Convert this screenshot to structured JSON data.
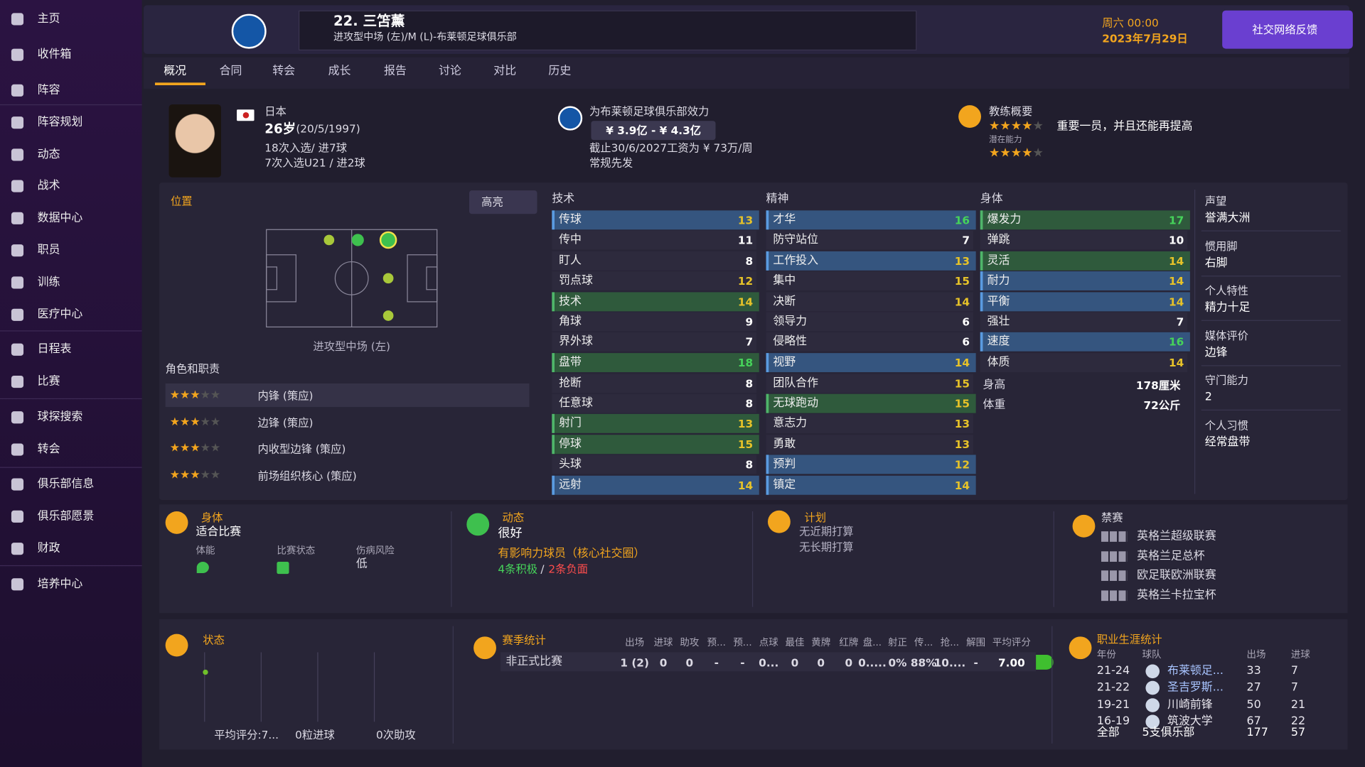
{
  "sidebar": {
    "items": [
      "主页",
      "收件箱",
      "阵容",
      "阵容规划",
      "动态",
      "战术",
      "数据中心",
      "职员",
      "训练",
      "医疗中心",
      "日程表",
      "比赛",
      "球探搜索",
      "转会",
      "俱乐部信息",
      "俱乐部愿景",
      "财政",
      "培养中心"
    ]
  },
  "header": {
    "name": "22. 三笘薰",
    "position": "进攻型中场 (左)/M (L)-布莱顿足球俱乐部",
    "time": "周六 00:00",
    "date": "2023年7月29日",
    "feedback_button": "社交网络反馈"
  },
  "tabs": [
    "概况",
    "合同",
    "转会",
    "成长",
    "报告",
    "讨论",
    "对比",
    "历史"
  ],
  "profile": {
    "nationality": "日本",
    "age": "26岁",
    "birth_date": "(20/5/1997)",
    "caps": "18次入选/ 进7球",
    "u21_caps": "7次入选U21 / 进2球",
    "club_line": "为布莱顿足球俱乐部效力",
    "value_range": "¥ 3.9亿 - ¥ 4.3亿",
    "contract": "截止30/6/2027工资为 ¥ 73万/周",
    "squad_status": "常规先发",
    "coach_title": "教练概要",
    "coach_summary": "重要一员，并且还能再提高",
    "potential_label": "潜在能力"
  },
  "position": {
    "title": "位置",
    "highlight_button": "高亮",
    "role_name": "进攻型中场 (左)",
    "roles_title": "角色和职责",
    "roles": [
      "内锋 (策应)",
      "边锋 (策应)",
      "内收型边锋 (策应)",
      "前场组织核心 (策应)"
    ]
  },
  "attributes": {
    "technical": {
      "title": "技术",
      "rows": [
        {
          "name": "传球",
          "value": 13,
          "highlight": "#35557f"
        },
        {
          "name": "传中",
          "value": 11
        },
        {
          "name": "盯人",
          "value": 8
        },
        {
          "name": "罚点球",
          "value": 12
        },
        {
          "name": "技术",
          "value": 14,
          "highlight": "#2f5a3c"
        },
        {
          "name": "角球",
          "value": 9
        },
        {
          "name": "界外球",
          "value": 7
        },
        {
          "name": "盘带",
          "value": 18,
          "highlight": "#2f5a3c"
        },
        {
          "name": "抢断",
          "value": 8
        },
        {
          "name": "任意球",
          "value": 8
        },
        {
          "name": "射门",
          "value": 13,
          "highlight": "#2f5a3c"
        },
        {
          "name": "停球",
          "value": 15,
          "highlight": "#2f5a3c"
        },
        {
          "name": "头球",
          "value": 8
        },
        {
          "name": "远射",
          "value": 14,
          "highlight": "#35557f"
        }
      ]
    },
    "mental": {
      "title": "精神",
      "rows": [
        {
          "name": "才华",
          "value": 16,
          "highlight": "#35557f"
        },
        {
          "name": "防守站位",
          "value": 7
        },
        {
          "name": "工作投入",
          "value": 13,
          "highlight": "#35557f"
        },
        {
          "name": "集中",
          "value": 15
        },
        {
          "name": "决断",
          "value": 14
        },
        {
          "name": "领导力",
          "value": 6
        },
        {
          "name": "侵略性",
          "value": 6
        },
        {
          "name": "视野",
          "value": 14,
          "highlight": "#35557f"
        },
        {
          "name": "团队合作",
          "value": 15
        },
        {
          "name": "无球跑动",
          "value": 15,
          "highlight": "#2f5a3c"
        },
        {
          "name": "意志力",
          "value": 13
        },
        {
          "name": "勇敢",
          "value": 13
        },
        {
          "name": "预判",
          "value": 12,
          "highlight": "#35557f"
        },
        {
          "name": "镇定",
          "value": 14,
          "highlight": "#35557f"
        }
      ]
    },
    "physical": {
      "title": "身体",
      "rows": [
        {
          "name": "爆发力",
          "value": 17,
          "highlight": "#2f5a3c"
        },
        {
          "name": "弹跳",
          "value": 10
        },
        {
          "name": "灵活",
          "value": 14,
          "highlight": "#2f5a3c"
        },
        {
          "name": "耐力",
          "value": 14,
          "highlight": "#35557f"
        },
        {
          "name": "平衡",
          "value": 14,
          "highlight": "#35557f"
        },
        {
          "name": "强壮",
          "value": 7
        },
        {
          "name": "速度",
          "value": 16,
          "highlight": "#35557f"
        },
        {
          "name": "体质",
          "value": 14
        }
      ],
      "height_label": "身高",
      "height": "178厘米",
      "weight_label": "体重",
      "weight": "72公斤"
    }
  },
  "details": [
    {
      "label": "声望",
      "value": "誉满大洲"
    },
    {
      "label": "惯用脚",
      "value": "右脚"
    },
    {
      "label": "个人特性",
      "value": "精力十足"
    },
    {
      "label": "媒体评价",
      "value": "边锋"
    },
    {
      "label": "守门能力",
      "value": "2"
    },
    {
      "label": "个人习惯",
      "value": "经常盘带"
    }
  ],
  "condition": {
    "title": "身体",
    "value": "适合比赛",
    "fitness_label": "体能",
    "match_form_label": "比赛状态",
    "injury_risk_label": "伤病风险",
    "injury_risk": "低"
  },
  "dynamics": {
    "title": "动态",
    "value": "很好",
    "status": "有影响力球员（核心社交圈）",
    "positive": "4条积极",
    "separator": "/",
    "negative": "2条负面"
  },
  "plans": {
    "title": "计划",
    "short_term": "无近期打算",
    "long_term": "无长期打算"
  },
  "bans": {
    "title": "禁赛",
    "competitions": [
      "英格兰超级联赛",
      "英格兰足总杯",
      "欧足联欧洲联赛",
      "英格兰卡拉宝杯"
    ]
  },
  "form": {
    "title": "状态",
    "avg_rating": "平均评分:7...",
    "goals": "0粒进球",
    "assists": "0次助攻"
  },
  "season_stats": {
    "title": "赛季统计",
    "headers": [
      "出场",
      "进球",
      "助攻",
      "预...",
      "预...",
      "点球",
      "最佳",
      "黄牌",
      "红牌",
      "盘...",
      "射正",
      "传...",
      "抢...",
      "解围",
      "平均评分"
    ],
    "row_label": "非正式比赛",
    "row": [
      "1 (2)",
      "0",
      "0",
      "-",
      "-",
      "0...",
      "0",
      "0",
      "0",
      "0.....",
      "0%",
      "88%",
      "10....",
      "-",
      "7.00"
    ]
  },
  "career": {
    "title": "职业生涯统计",
    "headers": [
      "年份",
      "球队",
      "出场",
      "进球"
    ],
    "rows": [
      [
        "21-24",
        "布莱顿足...",
        "33",
        "7"
      ],
      [
        "21-22",
        "圣吉罗斯...",
        "27",
        "7"
      ],
      [
        "19-21",
        "川崎前锋",
        "50",
        "21"
      ],
      [
        "16-19",
        "筑波大学",
        "67",
        "22"
      ]
    ],
    "total": [
      "全部",
      "5支俱乐部",
      "177",
      "57"
    ]
  }
}
